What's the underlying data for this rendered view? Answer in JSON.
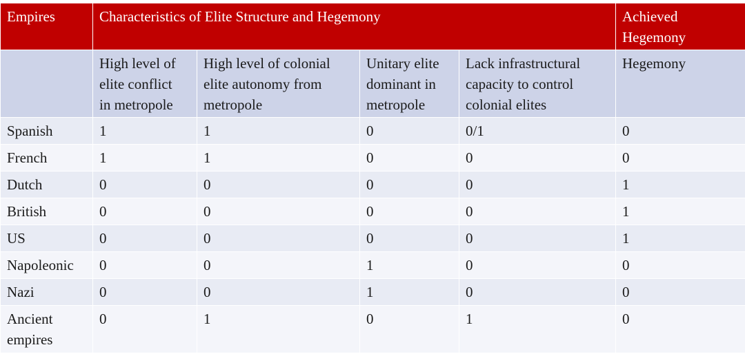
{
  "header": {
    "empires": "Empires",
    "characteristics": "Characteristics of Elite Structure and Hegemony",
    "achieved": [
      "Achieved",
      "Hegemony"
    ]
  },
  "subheaders": [
    [
      "High level of",
      "elite conflict",
      "in metropole"
    ],
    [
      "High level of colonial",
      "elite autonomy from",
      "metropole"
    ],
    [
      "Unitary elite",
      "dominant in",
      "metropole"
    ],
    [
      "Lack infrastructural",
      "capacity to control",
      "colonial elites"
    ],
    [
      "Hegemony"
    ]
  ],
  "rows": [
    {
      "empire": [
        "Spanish"
      ],
      "values": [
        "1",
        "1",
        "0",
        "0/1",
        "0"
      ]
    },
    {
      "empire": [
        "French"
      ],
      "values": [
        "1",
        "1",
        "0",
        "0",
        "0"
      ]
    },
    {
      "empire": [
        "Dutch"
      ],
      "values": [
        "0",
        "0",
        "0",
        "0",
        "1"
      ]
    },
    {
      "empire": [
        "British"
      ],
      "values": [
        "0",
        "0",
        "0",
        "0",
        "1"
      ]
    },
    {
      "empire": [
        "US"
      ],
      "values": [
        "0",
        "0",
        "0",
        "0",
        "1"
      ]
    },
    {
      "empire": [
        "Napoleonic"
      ],
      "values": [
        "0",
        "0",
        "1",
        "0",
        "0"
      ]
    },
    {
      "empire": [
        "Nazi"
      ],
      "values": [
        "0",
        "0",
        "1",
        "0",
        "0"
      ]
    },
    {
      "empire": [
        "Ancient",
        "empires"
      ],
      "values": [
        "0",
        "1",
        "0",
        "1",
        "0"
      ]
    }
  ],
  "colors": {
    "header_bg": "#c00000",
    "subheader_bg": "#cdd3e8",
    "row_odd_bg": "#e8ebf4",
    "row_even_bg": "#f4f5fa"
  }
}
